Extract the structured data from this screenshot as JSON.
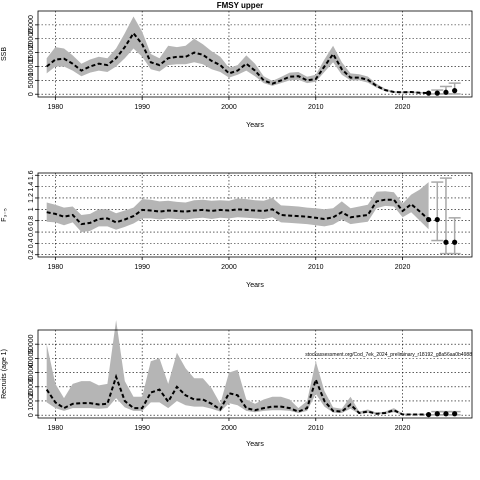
{
  "figure": {
    "title": "FMSY upper"
  },
  "chart_data": [
    {
      "type": "line",
      "ylabel": "SSB",
      "xlabel": "Years",
      "xlim": [
        1978,
        2028
      ],
      "ylim": [
        -1000,
        30000
      ],
      "x_ticks": [
        1980,
        1990,
        2000,
        2010,
        2020
      ],
      "y_ticks": [
        0,
        5000,
        10000,
        15000,
        20000,
        25000
      ],
      "grid": true,
      "series": [
        {
          "x": [
            1979,
            1980,
            1981,
            1982,
            1983,
            1984,
            1985,
            1986,
            1987,
            1988,
            1989,
            1990,
            1991,
            1992,
            1993,
            1994,
            1995,
            1996,
            1997,
            1998,
            1999,
            2000,
            2001,
            2002,
            2003,
            2004,
            2005,
            2006,
            2007,
            2008,
            2009,
            2010,
            2011,
            2012,
            2013,
            2014,
            2015,
            2016,
            2017,
            2018,
            2019,
            2020,
            2021,
            2022,
            2023
          ],
          "values": [
            10000,
            12500,
            12800,
            11000,
            8500,
            10000,
            11000,
            10500,
            13000,
            17000,
            22000,
            18000,
            11500,
            10500,
            13000,
            13500,
            13500,
            15000,
            14200,
            12000,
            10500,
            7500,
            8500,
            11000,
            8500,
            5000,
            3800,
            5000,
            6300,
            6500,
            5000,
            5500,
            10000,
            14500,
            9000,
            6000,
            6000,
            5200,
            3000,
            1500,
            800,
            700,
            800,
            500,
            400
          ],
          "lower": [
            7500,
            10000,
            10000,
            8500,
            6500,
            7800,
            8500,
            8000,
            10000,
            13000,
            16500,
            13500,
            9000,
            8200,
            10500,
            10800,
            10800,
            11500,
            10800,
            9000,
            8000,
            6000,
            7000,
            8500,
            6500,
            4000,
            3000,
            4000,
            5000,
            5200,
            4000,
            4500,
            8000,
            11500,
            7000,
            5000,
            5000,
            4200,
            2400,
            1100,
            500,
            400,
            400,
            300,
            200
          ],
          "upper": [
            13000,
            17000,
            16500,
            14000,
            11000,
            12500,
            13500,
            13000,
            16500,
            22000,
            28000,
            22500,
            14500,
            13000,
            17500,
            17000,
            17500,
            20000,
            18000,
            15500,
            13500,
            9500,
            10500,
            14000,
            11000,
            6500,
            4800,
            6200,
            7800,
            8000,
            6300,
            7000,
            12500,
            17500,
            11500,
            7500,
            7200,
            6400,
            3800,
            2000,
            1100,
            1000,
            1100,
            800,
            600
          ]
        }
      ],
      "forecast": {
        "x": [
          2024,
          2025,
          2026
        ],
        "values": [
          400,
          700,
          1300
        ],
        "lower": [
          100,
          100,
          100
        ],
        "upper": [
          1500,
          2800,
          4000
        ]
      }
    },
    {
      "type": "line",
      "ylabel": "F₃₋₅",
      "xlabel": "Years",
      "xlim": [
        1978,
        2028
      ],
      "ylim": [
        0.16,
        1.64
      ],
      "x_ticks": [
        1980,
        1990,
        2000,
        2010,
        2020
      ],
      "y_ticks": [
        0.2,
        0.4,
        0.6,
        0.8,
        1.0,
        1.2,
        1.4,
        1.6
      ],
      "grid": true,
      "series": [
        {
          "x": [
            1979,
            1980,
            1981,
            1982,
            1983,
            1984,
            1985,
            1986,
            1987,
            1988,
            1989,
            1990,
            1991,
            1992,
            1993,
            1994,
            1995,
            1996,
            1997,
            1998,
            1999,
            2000,
            2001,
            2002,
            2003,
            2004,
            2005,
            2006,
            2007,
            2008,
            2009,
            2010,
            2011,
            2012,
            2013,
            2014,
            2015,
            2016,
            2017,
            2018,
            2019,
            2020,
            2021,
            2022,
            2023
          ],
          "values": [
            0.95,
            0.92,
            0.87,
            0.9,
            0.74,
            0.76,
            0.83,
            0.84,
            0.77,
            0.82,
            0.88,
            0.99,
            0.98,
            0.96,
            0.98,
            0.97,
            0.96,
            0.98,
            0.99,
            0.97,
            0.99,
            0.98,
            1.0,
            0.99,
            0.98,
            0.97,
            1.0,
            0.9,
            0.89,
            0.88,
            0.87,
            0.85,
            0.83,
            0.86,
            0.95,
            0.86,
            0.88,
            0.9,
            1.14,
            1.17,
            1.17,
            0.97,
            1.09,
            0.96,
            0.82
          ],
          "lower": [
            0.78,
            0.77,
            0.72,
            0.77,
            0.6,
            0.62,
            0.7,
            0.7,
            0.64,
            0.69,
            0.75,
            0.84,
            0.84,
            0.82,
            0.84,
            0.83,
            0.82,
            0.84,
            0.85,
            0.83,
            0.85,
            0.84,
            0.86,
            0.85,
            0.84,
            0.83,
            0.86,
            0.77,
            0.76,
            0.75,
            0.74,
            0.72,
            0.7,
            0.73,
            0.82,
            0.74,
            0.76,
            0.78,
            1.02,
            1.06,
            1.05,
            0.86,
            0.95,
            0.8,
            0.65
          ],
          "upper": [
            1.12,
            1.08,
            1.03,
            1.05,
            0.9,
            0.92,
            1.0,
            1.0,
            0.93,
            0.98,
            1.03,
            1.18,
            1.17,
            1.14,
            1.15,
            1.13,
            1.12,
            1.16,
            1.17,
            1.15,
            1.16,
            1.15,
            1.19,
            1.18,
            1.16,
            1.15,
            1.2,
            1.07,
            1.06,
            1.05,
            1.03,
            1.02,
            1.0,
            1.02,
            1.14,
            1.02,
            1.05,
            1.08,
            1.31,
            1.32,
            1.3,
            1.1,
            1.26,
            1.35,
            1.48
          ]
        }
      ],
      "forecast": {
        "x": [
          2024,
          2025,
          2026
        ],
        "values": [
          0.82,
          0.42,
          0.42
        ],
        "lower": [
          0.45,
          0.22,
          0.22
        ],
        "upper": [
          1.48,
          1.55,
          0.85
        ]
      }
    },
    {
      "type": "line",
      "ylabel": "Recruits (age 1)",
      "xlabel": "Years",
      "xlim": [
        1978,
        2028
      ],
      "ylim": [
        -2000,
        60000
      ],
      "x_ticks": [
        1980,
        1990,
        2000,
        2010,
        2020
      ],
      "y_ticks": [
        0,
        10000,
        20000,
        30000,
        40000,
        50000
      ],
      "grid": true,
      "annotation": "stockassessment.org/Cod_7ek_2024_preliminary_r18192_g8a56aa0b4988",
      "series": [
        {
          "x": [
            1979,
            1980,
            1981,
            1982,
            1983,
            1984,
            1985,
            1986,
            1987,
            1988,
            1989,
            1990,
            1991,
            1992,
            1993,
            1994,
            1995,
            1996,
            1997,
            1998,
            1999,
            2000,
            2001,
            2002,
            2003,
            2004,
            2005,
            2006,
            2007,
            2008,
            2009,
            2010,
            2011,
            2012,
            2013,
            2014,
            2015,
            2016,
            2017,
            2018,
            2019,
            2020,
            2021,
            2022,
            2023
          ],
          "values": [
            18000,
            9000,
            5000,
            8000,
            8500,
            8500,
            7500,
            8000,
            27000,
            10000,
            5000,
            5000,
            16000,
            18000,
            9500,
            20000,
            14000,
            11000,
            11000,
            8000,
            4000,
            15500,
            14000,
            5000,
            3500,
            5000,
            6000,
            6000,
            5000,
            2500,
            5000,
            25000,
            10000,
            3000,
            2500,
            7500,
            1500,
            2500,
            1000,
            1500,
            3500,
            500,
            500,
            500,
            400
          ],
          "lower": [
            9000,
            5000,
            3000,
            5000,
            5000,
            5000,
            4500,
            5000,
            12000,
            5500,
            3000,
            3000,
            9000,
            9000,
            5000,
            10000,
            7000,
            6000,
            6000,
            4500,
            2500,
            8500,
            7000,
            3000,
            2000,
            3000,
            3500,
            3500,
            3000,
            1500,
            3000,
            15000,
            6000,
            1800,
            1500,
            4500,
            800,
            1500,
            600,
            900,
            2000,
            200,
            200,
            200,
            100
          ],
          "upper": [
            50000,
            22000,
            12000,
            22000,
            24000,
            24000,
            21000,
            22000,
            67000,
            24000,
            13000,
            13000,
            38000,
            40000,
            22000,
            44000,
            33000,
            26000,
            26000,
            19000,
            8000,
            30000,
            32000,
            11000,
            8000,
            11000,
            13000,
            13000,
            11000,
            5000,
            10000,
            38000,
            17000,
            5500,
            4500,
            13000,
            2500,
            4000,
            1800,
            2500,
            5000,
            1200,
            1000,
            1000,
            900
          ]
        }
      ],
      "forecast": {
        "x": [
          2024,
          2025,
          2026
        ],
        "values": [
          1000,
          1000,
          1000
        ],
        "lower": [
          200,
          200,
          200
        ],
        "upper": [
          2500,
          2500,
          2500
        ]
      }
    }
  ]
}
